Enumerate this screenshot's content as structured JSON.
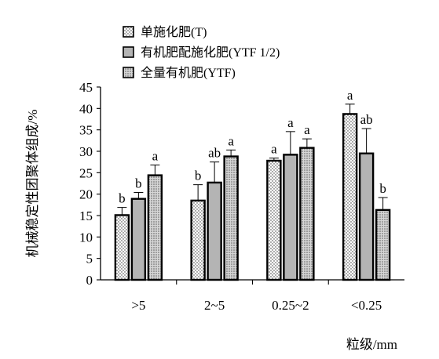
{
  "chart_data": {
    "type": "bar",
    "categories": [
      ">5",
      "2~5",
      "0.25~2",
      "<0.25"
    ],
    "series": [
      {
        "name": "单施化肥(T)",
        "pattern": "dots",
        "values": [
          15.1,
          18.5,
          27.8,
          38.7
        ],
        "errors": [
          1.8,
          3.7,
          0.6,
          2.3
        ],
        "labels": [
          "b",
          "b",
          "a",
          "a"
        ]
      },
      {
        "name": "有机肥配施化肥(YTF 1/2)",
        "pattern": "gray",
        "values": [
          18.9,
          22.7,
          29.2,
          29.5
        ],
        "errors": [
          1.5,
          4.8,
          5.4,
          5.8
        ],
        "labels": [
          "b",
          "ab",
          "a",
          "ab"
        ]
      },
      {
        "name": "全量有机肥(YTF)",
        "pattern": "fine-dots",
        "values": [
          24.4,
          28.8,
          30.8,
          16.3
        ],
        "errors": [
          2.4,
          1.5,
          2.1,
          2.9
        ],
        "labels": [
          "a",
          "a",
          "a",
          "b"
        ]
      }
    ],
    "ylabel": "机械稳定性团聚体组成/%",
    "xlabel": "粒级/mm",
    "ylim": [
      0,
      45
    ],
    "yticks": [
      0,
      5,
      10,
      15,
      20,
      25,
      30,
      35,
      40,
      45
    ],
    "grid": false,
    "legend": "top"
  }
}
